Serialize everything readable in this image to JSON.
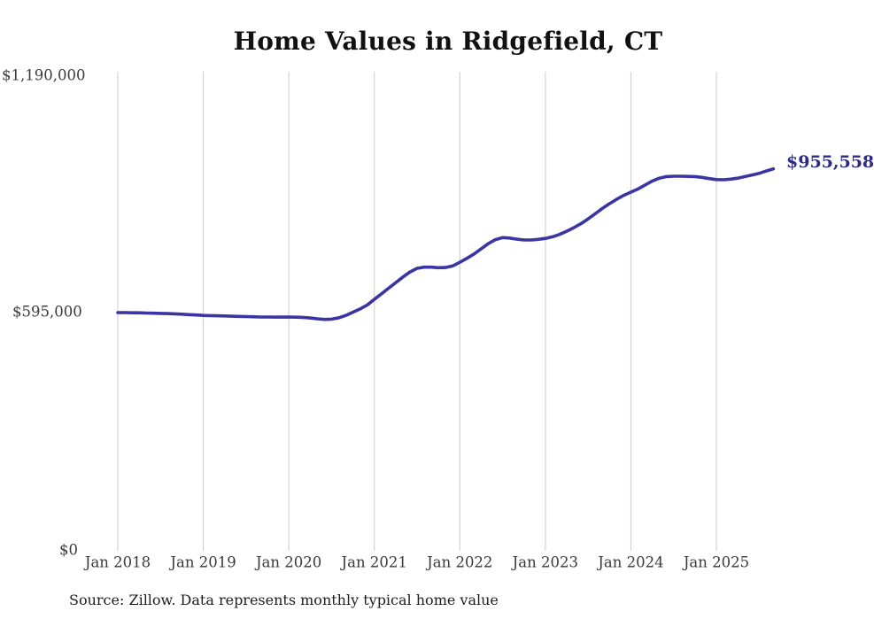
{
  "chart_data": {
    "type": "line",
    "title": "Home Values in Ridgefield, CT",
    "x_tick_labels": [
      "Jan 2018",
      "Jan 2019",
      "Jan 2020",
      "Jan 2021",
      "Jan 2022",
      "Jan 2023",
      "Jan 2024",
      "Jan 2025"
    ],
    "y_ticks": [
      {
        "label": "$1,190,000",
        "value": 1190000
      },
      {
        "label": "$595,000",
        "value": 595000
      },
      {
        "label": "$0",
        "value": 0
      }
    ],
    "ylim": [
      0,
      1190000
    ],
    "grid": "vertical-yearly-gridlines",
    "legend": "none",
    "line_color": "#3b35a4",
    "gridline_color": "#cbcbcb",
    "end_label": {
      "text": "$955,558",
      "color": "#2c2b87"
    },
    "source_note": "Source: Zillow. Data represents monthly typical home value",
    "series": [
      {
        "name": "Typical home value",
        "frequency": "monthly",
        "start_month": "2018-01",
        "end_month": "2025-09",
        "values": [
          595000,
          595000,
          594500,
          594500,
          594000,
          593500,
          593000,
          592500,
          592000,
          591000,
          590000,
          589000,
          588000,
          587500,
          587000,
          586500,
          586000,
          585500,
          585000,
          584500,
          584000,
          583800,
          583600,
          583700,
          583800,
          583500,
          583000,
          581500,
          579500,
          578000,
          578500,
          582000,
          588000,
          596000,
          604000,
          614000,
          628000,
          642000,
          656000,
          670000,
          684000,
          697000,
          706000,
          709000,
          709000,
          707500,
          708000,
          712000,
          721000,
          731000,
          742000,
          755000,
          768000,
          778000,
          783000,
          782000,
          779000,
          777000,
          777000,
          778500,
          781000,
          785000,
          791000,
          799000,
          808000,
          818000,
          830000,
          843000,
          856000,
          868000,
          879000,
          889000,
          897000,
          905000,
          915000,
          925000,
          932000,
          936000,
          937000,
          937000,
          936500,
          936000,
          934000,
          931000,
          928500,
          928000,
          929500,
          932000,
          936000,
          940000,
          944000,
          950000,
          955558
        ]
      }
    ]
  }
}
